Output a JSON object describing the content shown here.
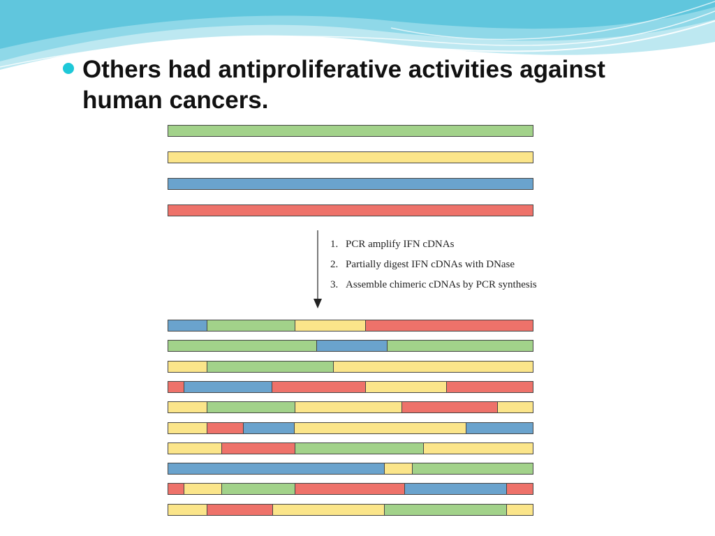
{
  "bullet": {
    "text": "Others had antiproliferative activities against human cancers."
  },
  "colors": {
    "green": "#a2d28a",
    "yellow": "#fbe58a",
    "blue": "#6aa3cd",
    "red": "#ee726a",
    "bullet": "#1ec8d8",
    "wave_light": "#bde8f1",
    "wave_mid": "#7fd3e6",
    "wave_dark": "#3db8d3"
  },
  "steps": [
    {
      "num": "1.",
      "text": "PCR amplify IFN cDNAs"
    },
    {
      "num": "2.",
      "text": "Partially digest IFN cDNAs with DNase"
    },
    {
      "num": "3.",
      "text": "Assemble chimeric cDNAs by PCR synthesis"
    }
  ],
  "chart_data": {
    "type": "diagram",
    "description_units": "fraction of cDNA length",
    "parental": [
      [
        {
          "c": "green",
          "f": 1.0
        }
      ],
      [
        {
          "c": "yellow",
          "f": 1.0
        }
      ],
      [
        {
          "c": "blue",
          "f": 1.0
        }
      ],
      [
        {
          "c": "red",
          "f": 1.0
        }
      ]
    ],
    "chimeras": [
      [
        {
          "c": "blue",
          "f": 0.107
        },
        {
          "c": "green",
          "f": 0.241
        },
        {
          "c": "yellow",
          "f": 0.193
        },
        {
          "c": "red",
          "f": 0.459
        }
      ],
      [
        {
          "c": "green",
          "f": 0.407
        },
        {
          "c": "blue",
          "f": 0.193
        },
        {
          "c": "green",
          "f": 0.4
        }
      ],
      [
        {
          "c": "yellow",
          "f": 0.107
        },
        {
          "c": "green",
          "f": 0.346
        },
        {
          "c": "yellow",
          "f": 0.547
        }
      ],
      [
        {
          "c": "red",
          "f": 0.044
        },
        {
          "c": "blue",
          "f": 0.241
        },
        {
          "c": "red",
          "f": 0.256
        },
        {
          "c": "yellow",
          "f": 0.222
        },
        {
          "c": "red",
          "f": 0.237
        }
      ],
      [
        {
          "c": "yellow",
          "f": 0.107
        },
        {
          "c": "green",
          "f": 0.241
        },
        {
          "c": "yellow",
          "f": 0.293
        },
        {
          "c": "red",
          "f": 0.261
        },
        {
          "c": "yellow",
          "f": 0.098
        }
      ],
      [
        {
          "c": "yellow",
          "f": 0.107
        },
        {
          "c": "red",
          "f": 0.099
        },
        {
          "c": "blue",
          "f": 0.141
        },
        {
          "c": "yellow",
          "f": 0.469
        },
        {
          "c": "blue",
          "f": 0.184
        }
      ],
      [
        {
          "c": "yellow",
          "f": 0.147
        },
        {
          "c": "red",
          "f": 0.201
        },
        {
          "c": "green",
          "f": 0.352
        },
        {
          "c": "yellow",
          "f": 0.3
        }
      ],
      [
        {
          "c": "blue",
          "f": 0.593
        },
        {
          "c": "yellow",
          "f": 0.077
        },
        {
          "c": "green",
          "f": 0.33
        }
      ],
      [
        {
          "c": "red",
          "f": 0.044
        },
        {
          "c": "yellow",
          "f": 0.103
        },
        {
          "c": "green",
          "f": 0.201
        },
        {
          "c": "red",
          "f": 0.3
        },
        {
          "c": "blue",
          "f": 0.279
        },
        {
          "c": "red",
          "f": 0.073
        }
      ],
      [
        {
          "c": "yellow",
          "f": 0.107
        },
        {
          "c": "red",
          "f": 0.179
        },
        {
          "c": "yellow",
          "f": 0.306
        },
        {
          "c": "green",
          "f": 0.335
        },
        {
          "c": "yellow",
          "f": 0.073
        }
      ]
    ]
  }
}
